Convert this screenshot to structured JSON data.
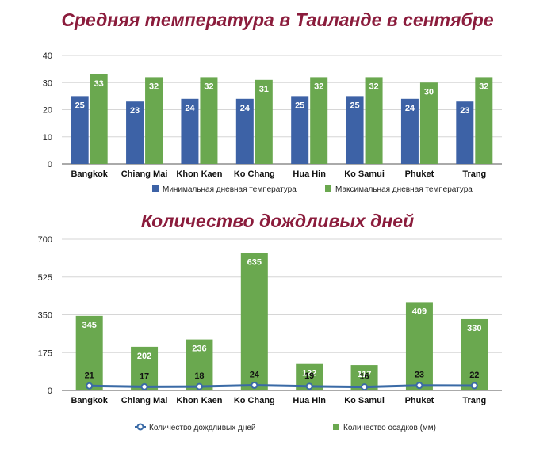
{
  "colors": {
    "title": "#8b1c3c",
    "min": "#3d62a6",
    "max": "#6aa84f",
    "rain_bar": "#6aa84f",
    "rain_line": "#3a6aa6"
  },
  "chart_data": [
    {
      "type": "bar",
      "title": "Средняя температура в Таиланде в сентябре",
      "categories": [
        "Bangkok",
        "Chiang Mai",
        "Khon Kaen",
        "Ko Chang",
        "Hua Hin",
        "Ko Samui",
        "Phuket",
        "Trang"
      ],
      "series": [
        {
          "name": "Минимальная дневная температура",
          "values": [
            25,
            23,
            24,
            24,
            25,
            25,
            24,
            23
          ]
        },
        {
          "name": "Максимальная дневная температура",
          "values": [
            33,
            32,
            32,
            31,
            32,
            32,
            30,
            32
          ]
        }
      ],
      "ylim": [
        0,
        40
      ],
      "yticks": [
        0,
        10,
        20,
        30,
        40
      ],
      "grid": true,
      "legend": "bottom"
    },
    {
      "type": "bar",
      "title": "Количество дождливых дней",
      "categories": [
        "Bangkok",
        "Chiang Mai",
        "Khon Kaen",
        "Ko Chang",
        "Hua Hin",
        "Ko Samui",
        "Phuket",
        "Trang"
      ],
      "series": [
        {
          "name": "Количество осадков (мм)",
          "type": "bar",
          "values": [
            345,
            202,
            236,
            635,
            122,
            117,
            409,
            330
          ]
        },
        {
          "name": "Количество дождливых дней",
          "type": "line",
          "values": [
            21,
            17,
            18,
            24,
            19,
            16,
            23,
            22
          ]
        }
      ],
      "ylim": [
        0,
        700
      ],
      "yticks": [
        0,
        175,
        350,
        525,
        700
      ],
      "grid": true,
      "legend": "bottom"
    }
  ]
}
